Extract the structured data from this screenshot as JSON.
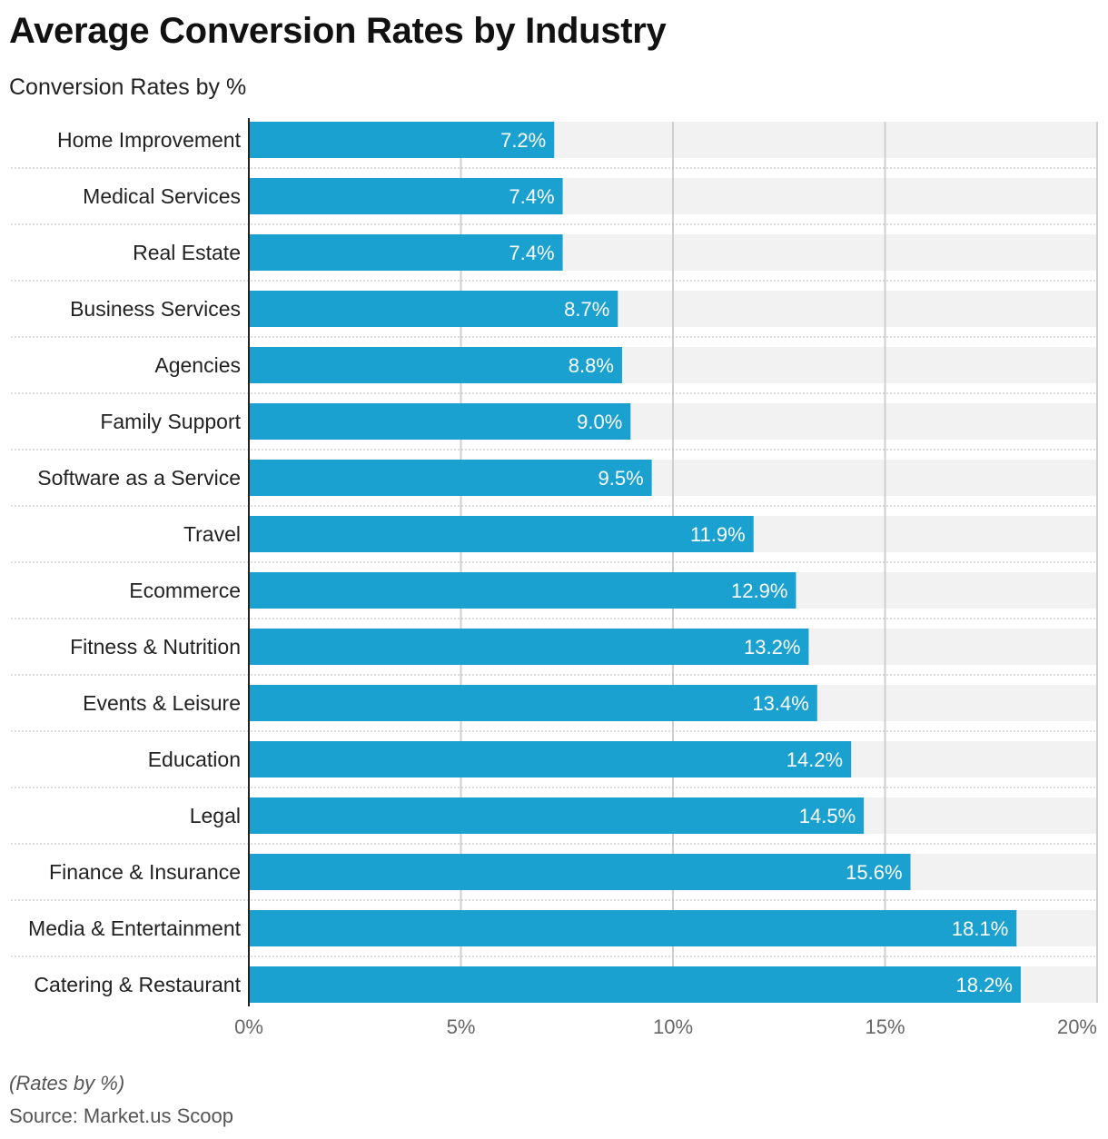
{
  "title": "Average Conversion Rates by Industry",
  "subtitle": "Conversion Rates by %",
  "footnote": "(Rates by %)",
  "source": "Source: Market.us Scoop",
  "colors": {
    "bar": "#1aa1cf",
    "track": "#f2f2f2",
    "grid": "#cfcfcf",
    "axis": "#222222"
  },
  "chart_data": {
    "type": "bar",
    "orientation": "horizontal",
    "categories": [
      "Home Improvement",
      "Medical Services",
      "Real Estate",
      "Business Services",
      "Agencies",
      "Family Support",
      "Software as a Service",
      "Travel",
      "Ecommerce",
      "Fitness & Nutrition",
      "Events & Leisure",
      "Education",
      "Legal",
      "Finance & Insurance",
      "Media & Entertainment",
      "Catering & Restaurant"
    ],
    "values": [
      7.2,
      7.4,
      7.4,
      8.7,
      8.8,
      9.0,
      9.5,
      11.9,
      12.9,
      13.2,
      13.4,
      14.2,
      14.5,
      15.6,
      18.1,
      18.2
    ],
    "value_labels": [
      "7.2%",
      "7.4%",
      "7.4%",
      "8.7%",
      "8.8%",
      "9.0%",
      "9.5%",
      "11.9%",
      "12.9%",
      "13.2%",
      "13.4%",
      "14.2%",
      "14.5%",
      "15.6%",
      "18.1%",
      "18.2%"
    ],
    "xlim": [
      0,
      20
    ],
    "x_ticks": [
      0,
      5,
      10,
      15,
      20
    ],
    "x_tick_labels": [
      "0%",
      "5%",
      "10%",
      "15%",
      "20%"
    ],
    "grid": true
  }
}
